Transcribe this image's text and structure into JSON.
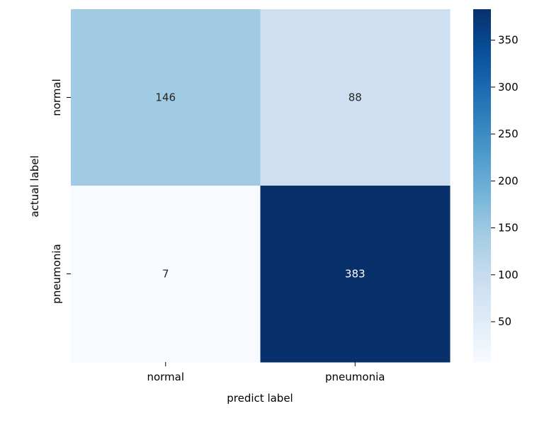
{
  "chart_data": {
    "type": "heatmap",
    "xlabel": "predict label",
    "ylabel": "actual label",
    "x_categories": [
      "normal",
      "pneumonia"
    ],
    "y_categories": [
      "normal",
      "pneumonia"
    ],
    "values": [
      [
        146,
        88
      ],
      [
        7,
        383
      ]
    ],
    "colormap": "Blues",
    "colorbar": {
      "min": 7,
      "max": 383,
      "ticks": [
        50,
        100,
        150,
        200,
        250,
        300,
        350
      ]
    },
    "colors": {
      "text_dark": "#262626",
      "text_light": "#ffffff",
      "axis": "#000000"
    }
  }
}
